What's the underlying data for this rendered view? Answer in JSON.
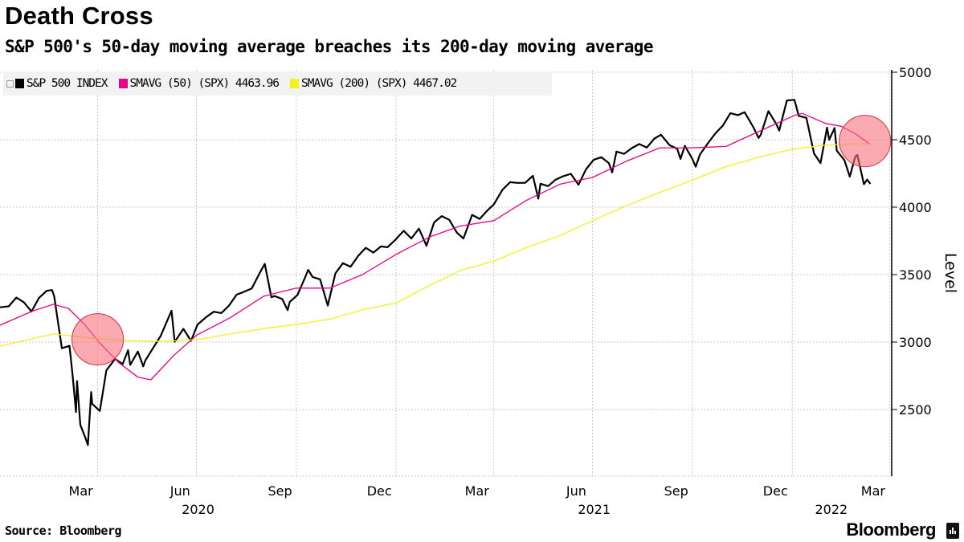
{
  "header": {
    "title": "Death Cross",
    "subtitle": "S&P 500's 50-day moving average breaches its 200-day moving average"
  },
  "footer": {
    "source": "Source: Bloomberg",
    "brand": "Bloomberg"
  },
  "chart_data": {
    "type": "line",
    "ylabel": "Level",
    "ylim": [
      2000,
      5050
    ],
    "yticks": [
      2500,
      3000,
      3500,
      4000,
      4500,
      5000
    ],
    "xlim": [
      "2020-01-02",
      "2022-03-14"
    ],
    "y_axis_side": "right",
    "grid": true,
    "legend_placement": "top-left",
    "x_month_labels": [
      {
        "date": "2020-03",
        "label": "Mar"
      },
      {
        "date": "2020-06",
        "label": "Jun"
      },
      {
        "date": "2020-09",
        "label": "Sep"
      },
      {
        "date": "2020-12",
        "label": "Dec"
      },
      {
        "date": "2021-03",
        "label": "Mar"
      },
      {
        "date": "2021-06",
        "label": "Jun"
      },
      {
        "date": "2021-09",
        "label": "Sep"
      },
      {
        "date": "2021-12",
        "label": "Dec"
      },
      {
        "date": "2022-03",
        "label": "Mar"
      }
    ],
    "x_year_labels": [
      "2020",
      "2021",
      "2022"
    ],
    "highlights": [
      {
        "date": "2020-04-01",
        "value": 3020
      },
      {
        "date": "2022-03-09",
        "value": 4490
      }
    ],
    "highlight_color": "#f7717c",
    "series": [
      {
        "name": "S&P 500 INDEX",
        "legend_value": "",
        "color": "#000000",
        "points": [
          [
            "2020-01-02",
            3258
          ],
          [
            "2020-01-10",
            3265
          ],
          [
            "2020-01-17",
            3330
          ],
          [
            "2020-01-24",
            3295
          ],
          [
            "2020-01-31",
            3226
          ],
          [
            "2020-02-07",
            3328
          ],
          [
            "2020-02-14",
            3380
          ],
          [
            "2020-02-19",
            3386
          ],
          [
            "2020-02-21",
            3338
          ],
          [
            "2020-02-28",
            2954
          ],
          [
            "2020-03-06",
            2972
          ],
          [
            "2020-03-09",
            2747
          ],
          [
            "2020-03-12",
            2481
          ],
          [
            "2020-03-13",
            2711
          ],
          [
            "2020-03-16",
            2386
          ],
          [
            "2020-03-20",
            2305
          ],
          [
            "2020-03-23",
            2237
          ],
          [
            "2020-03-26",
            2630
          ],
          [
            "2020-03-27",
            2541
          ],
          [
            "2020-04-03",
            2489
          ],
          [
            "2020-04-09",
            2790
          ],
          [
            "2020-04-17",
            2875
          ],
          [
            "2020-04-24",
            2837
          ],
          [
            "2020-04-29",
            2940
          ],
          [
            "2020-05-01",
            2831
          ],
          [
            "2020-05-08",
            2930
          ],
          [
            "2020-05-13",
            2820
          ],
          [
            "2020-05-15",
            2864
          ],
          [
            "2020-05-22",
            2955
          ],
          [
            "2020-05-29",
            3044
          ],
          [
            "2020-06-08",
            3232
          ],
          [
            "2020-06-11",
            3002
          ],
          [
            "2020-06-19",
            3098
          ],
          [
            "2020-06-26",
            3009
          ],
          [
            "2020-07-02",
            3130
          ],
          [
            "2020-07-10",
            3185
          ],
          [
            "2020-07-17",
            3225
          ],
          [
            "2020-07-24",
            3215
          ],
          [
            "2020-07-31",
            3271
          ],
          [
            "2020-08-07",
            3351
          ],
          [
            "2020-08-14",
            3373
          ],
          [
            "2020-08-21",
            3397
          ],
          [
            "2020-08-28",
            3508
          ],
          [
            "2020-09-02",
            3580
          ],
          [
            "2020-09-08",
            3332
          ],
          [
            "2020-09-11",
            3341
          ],
          [
            "2020-09-18",
            3319
          ],
          [
            "2020-09-23",
            3237
          ],
          [
            "2020-09-25",
            3298
          ],
          [
            "2020-10-02",
            3348
          ],
          [
            "2020-10-09",
            3477
          ],
          [
            "2020-10-12",
            3535
          ],
          [
            "2020-10-16",
            3483
          ],
          [
            "2020-10-23",
            3465
          ],
          [
            "2020-10-30",
            3270
          ],
          [
            "2020-11-06",
            3509
          ],
          [
            "2020-11-13",
            3585
          ],
          [
            "2020-11-20",
            3558
          ],
          [
            "2020-11-27",
            3638
          ],
          [
            "2020-12-04",
            3699
          ],
          [
            "2020-12-11",
            3663
          ],
          [
            "2020-12-18",
            3709
          ],
          [
            "2020-12-24",
            3703
          ],
          [
            "2020-12-31",
            3756
          ],
          [
            "2021-01-08",
            3825
          ],
          [
            "2021-01-15",
            3768
          ],
          [
            "2021-01-22",
            3841
          ],
          [
            "2021-01-29",
            3714
          ],
          [
            "2021-02-05",
            3887
          ],
          [
            "2021-02-12",
            3934
          ],
          [
            "2021-02-19",
            3906
          ],
          [
            "2021-02-26",
            3811
          ],
          [
            "2021-03-04",
            3768
          ],
          [
            "2021-03-12",
            3943
          ],
          [
            "2021-03-19",
            3913
          ],
          [
            "2021-03-26",
            3975
          ],
          [
            "2021-04-01",
            4020
          ],
          [
            "2021-04-09",
            4129
          ],
          [
            "2021-04-16",
            4185
          ],
          [
            "2021-04-23",
            4180
          ],
          [
            "2021-04-30",
            4181
          ],
          [
            "2021-05-07",
            4233
          ],
          [
            "2021-05-12",
            4063
          ],
          [
            "2021-05-14",
            4174
          ],
          [
            "2021-05-21",
            4156
          ],
          [
            "2021-05-28",
            4204
          ],
          [
            "2021-06-04",
            4230
          ],
          [
            "2021-06-11",
            4247
          ],
          [
            "2021-06-18",
            4166
          ],
          [
            "2021-06-25",
            4281
          ],
          [
            "2021-07-02",
            4352
          ],
          [
            "2021-07-09",
            4370
          ],
          [
            "2021-07-16",
            4327
          ],
          [
            "2021-07-19",
            4258
          ],
          [
            "2021-07-23",
            4412
          ],
          [
            "2021-07-30",
            4395
          ],
          [
            "2021-08-06",
            4437
          ],
          [
            "2021-08-13",
            4468
          ],
          [
            "2021-08-20",
            4442
          ],
          [
            "2021-08-27",
            4509
          ],
          [
            "2021-09-02",
            4537
          ],
          [
            "2021-09-10",
            4459
          ],
          [
            "2021-09-17",
            4433
          ],
          [
            "2021-09-20",
            4358
          ],
          [
            "2021-09-24",
            4455
          ],
          [
            "2021-10-01",
            4357
          ],
          [
            "2021-10-04",
            4300
          ],
          [
            "2021-10-08",
            4391
          ],
          [
            "2021-10-15",
            4471
          ],
          [
            "2021-10-22",
            4545
          ],
          [
            "2021-10-29",
            4605
          ],
          [
            "2021-11-05",
            4697
          ],
          [
            "2021-11-12",
            4682
          ],
          [
            "2021-11-18",
            4704
          ],
          [
            "2021-11-26",
            4595
          ],
          [
            "2021-12-01",
            4513
          ],
          [
            "2021-12-03",
            4538
          ],
          [
            "2021-12-10",
            4712
          ],
          [
            "2021-12-17",
            4620
          ],
          [
            "2021-12-20",
            4568
          ],
          [
            "2021-12-27",
            4791
          ],
          [
            "2022-01-03",
            4796
          ],
          [
            "2022-01-07",
            4677
          ],
          [
            "2022-01-14",
            4662
          ],
          [
            "2022-01-21",
            4398
          ],
          [
            "2022-01-27",
            4326
          ],
          [
            "2022-02-02",
            4589
          ],
          [
            "2022-02-04",
            4500
          ],
          [
            "2022-02-09",
            4587
          ],
          [
            "2022-02-11",
            4419
          ],
          [
            "2022-02-18",
            4349
          ],
          [
            "2022-02-23",
            4226
          ],
          [
            "2022-02-28",
            4374
          ],
          [
            "2022-03-02",
            4387
          ],
          [
            "2022-03-08",
            4170
          ],
          [
            "2022-03-11",
            4204
          ],
          [
            "2022-03-14",
            4173
          ]
        ]
      },
      {
        "name": "SMAVG (50) (SPX)",
        "legend_value": "4463.96",
        "color": "#e6008a",
        "points": [
          [
            "2020-01-02",
            3125
          ],
          [
            "2020-02-01",
            3230
          ],
          [
            "2020-02-20",
            3280
          ],
          [
            "2020-03-05",
            3250
          ],
          [
            "2020-03-20",
            3130
          ],
          [
            "2020-04-01",
            3010
          ],
          [
            "2020-04-20",
            2850
          ],
          [
            "2020-05-08",
            2740
          ],
          [
            "2020-05-20",
            2720
          ],
          [
            "2020-06-10",
            2900
          ],
          [
            "2020-07-01",
            3050
          ],
          [
            "2020-08-01",
            3180
          ],
          [
            "2020-09-01",
            3340
          ],
          [
            "2020-10-01",
            3400
          ],
          [
            "2020-11-01",
            3400
          ],
          [
            "2020-12-01",
            3500
          ],
          [
            "2021-01-01",
            3650
          ],
          [
            "2021-02-01",
            3780
          ],
          [
            "2021-03-01",
            3860
          ],
          [
            "2021-04-01",
            3900
          ],
          [
            "2021-05-01",
            4050
          ],
          [
            "2021-06-01",
            4170
          ],
          [
            "2021-07-01",
            4220
          ],
          [
            "2021-08-01",
            4340
          ],
          [
            "2021-09-01",
            4440
          ],
          [
            "2021-10-01",
            4440
          ],
          [
            "2021-11-01",
            4450
          ],
          [
            "2021-12-01",
            4560
          ],
          [
            "2022-01-03",
            4680
          ],
          [
            "2022-01-10",
            4695
          ],
          [
            "2022-02-01",
            4620
          ],
          [
            "2022-02-15",
            4600
          ],
          [
            "2022-03-01",
            4540
          ],
          [
            "2022-03-14",
            4464
          ]
        ]
      },
      {
        "name": "SMAVG (200) (SPX)",
        "legend_value": "4467.02",
        "color": "#f5f01e",
        "points": [
          [
            "2020-01-02",
            2970
          ],
          [
            "2020-02-20",
            3060
          ],
          [
            "2020-03-15",
            3040
          ],
          [
            "2020-04-01",
            3025
          ],
          [
            "2020-05-01",
            3010
          ],
          [
            "2020-06-01",
            3005
          ],
          [
            "2020-07-01",
            3018
          ],
          [
            "2020-08-01",
            3060
          ],
          [
            "2020-09-01",
            3100
          ],
          [
            "2020-10-01",
            3130
          ],
          [
            "2020-11-01",
            3170
          ],
          [
            "2020-12-01",
            3240
          ],
          [
            "2021-01-01",
            3290
          ],
          [
            "2021-02-01",
            3420
          ],
          [
            "2021-03-01",
            3530
          ],
          [
            "2021-04-01",
            3600
          ],
          [
            "2021-05-01",
            3700
          ],
          [
            "2021-06-01",
            3790
          ],
          [
            "2021-07-01",
            3900
          ],
          [
            "2021-08-01",
            4010
          ],
          [
            "2021-09-01",
            4110
          ],
          [
            "2021-10-01",
            4200
          ],
          [
            "2021-11-01",
            4300
          ],
          [
            "2021-12-01",
            4370
          ],
          [
            "2022-01-01",
            4430
          ],
          [
            "2022-02-01",
            4460
          ],
          [
            "2022-03-01",
            4470
          ],
          [
            "2022-03-14",
            4467
          ]
        ]
      }
    ]
  }
}
